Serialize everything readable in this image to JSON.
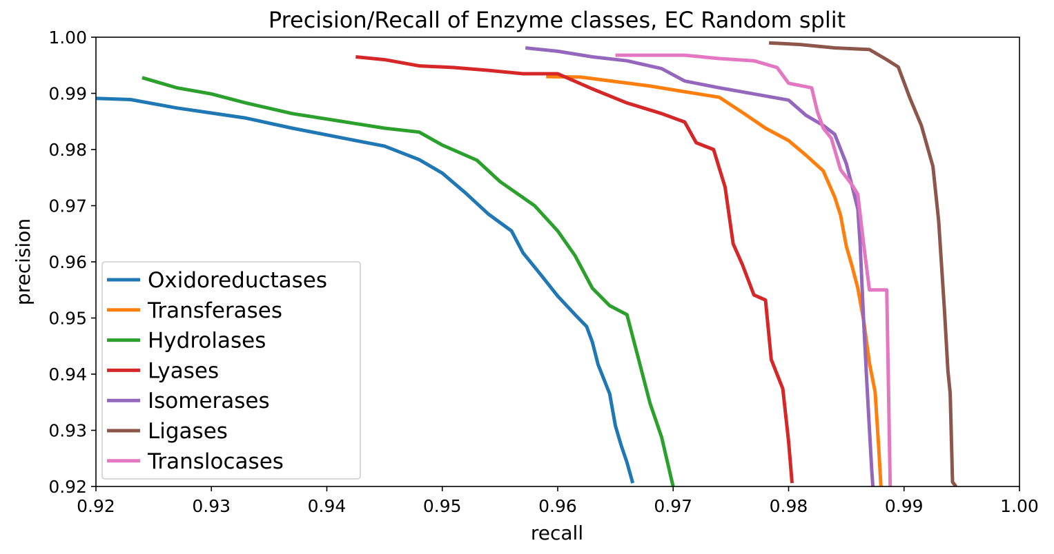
{
  "chart_data": {
    "type": "line",
    "title": "Precision/Recall of Enzyme classes, EC Random split",
    "xlabel": "recall",
    "ylabel": "precision",
    "xlim": [
      0.92,
      1.0
    ],
    "ylim": [
      0.92,
      1.0
    ],
    "xticks": [
      "0.92",
      "0.93",
      "0.94",
      "0.95",
      "0.96",
      "0.97",
      "0.98",
      "0.99",
      "1.00"
    ],
    "yticks": [
      "0.92",
      "0.93",
      "0.94",
      "0.95",
      "0.96",
      "0.97",
      "0.98",
      "0.99",
      "1.00"
    ],
    "grid": false,
    "legend_position": "lower-left",
    "series": [
      {
        "name": "Oxidoreductases",
        "color": "#1f77b4",
        "x": [
          0.92,
          0.923,
          0.927,
          0.93,
          0.933,
          0.937,
          0.941,
          0.945,
          0.948,
          0.95,
          0.952,
          0.954,
          0.956,
          0.957,
          0.9585,
          0.96,
          0.9615,
          0.9625,
          0.963,
          0.9635,
          0.9645,
          0.965,
          0.9655,
          0.966,
          0.9665
        ],
        "y": [
          0.9891,
          0.9889,
          0.9874,
          0.9865,
          0.9856,
          0.9838,
          0.9822,
          0.9806,
          0.9782,
          0.9758,
          0.9723,
          0.9685,
          0.9655,
          0.9616,
          0.9578,
          0.9539,
          0.9506,
          0.9485,
          0.9457,
          0.9417,
          0.9365,
          0.9308,
          0.9273,
          0.9243,
          0.9206
        ]
      },
      {
        "name": "Transferases",
        "color": "#ff7f0e",
        "x": [
          0.959,
          0.962,
          0.965,
          0.968,
          0.971,
          0.974,
          0.976,
          0.978,
          0.98,
          0.9815,
          0.983,
          0.984,
          0.9845,
          0.985,
          0.9855,
          0.986,
          0.9865,
          0.987,
          0.9875,
          0.9878,
          0.988
        ],
        "y": [
          0.993,
          0.9929,
          0.9921,
          0.9913,
          0.9903,
          0.9893,
          0.9866,
          0.9838,
          0.9816,
          0.979,
          0.9762,
          0.9715,
          0.9683,
          0.9628,
          0.9592,
          0.9553,
          0.9496,
          0.942,
          0.9368,
          0.927,
          0.92
        ]
      },
      {
        "name": "Hydrolases",
        "color": "#2ca02c",
        "x": [
          0.924,
          0.927,
          0.93,
          0.933,
          0.937,
          0.941,
          0.945,
          0.948,
          0.95,
          0.953,
          0.955,
          0.958,
          0.96,
          0.9615,
          0.963,
          0.9645,
          0.966,
          0.967,
          0.968,
          0.969,
          0.97
        ],
        "y": [
          0.9928,
          0.991,
          0.9899,
          0.9883,
          0.9864,
          0.9851,
          0.9838,
          0.9831,
          0.9808,
          0.9781,
          0.9743,
          0.97,
          0.9655,
          0.9611,
          0.9553,
          0.9522,
          0.9506,
          0.9427,
          0.9348,
          0.9288,
          0.92
        ]
      },
      {
        "name": "Lyases",
        "color": "#d62728",
        "x": [
          0.9425,
          0.945,
          0.948,
          0.951,
          0.954,
          0.957,
          0.96,
          0.963,
          0.966,
          0.969,
          0.971,
          0.972,
          0.9735,
          0.9745,
          0.9752,
          0.976,
          0.977,
          0.978,
          0.9785,
          0.9795,
          0.98,
          0.9803
        ],
        "y": [
          0.9965,
          0.996,
          0.9949,
          0.9946,
          0.9941,
          0.9935,
          0.9935,
          0.9908,
          0.9883,
          0.9864,
          0.9849,
          0.9812,
          0.98,
          0.9733,
          0.9632,
          0.9595,
          0.9541,
          0.9532,
          0.9426,
          0.9374,
          0.928,
          0.9206
        ]
      },
      {
        "name": "Isomerases",
        "color": "#9467bd",
        "x": [
          0.9572,
          0.96,
          0.963,
          0.966,
          0.969,
          0.971,
          0.974,
          0.977,
          0.98,
          0.9815,
          0.983,
          0.984,
          0.985,
          0.9855,
          0.986,
          0.9862,
          0.9865,
          0.9868,
          0.9872,
          0.9873
        ],
        "y": [
          0.9981,
          0.9975,
          0.9965,
          0.9958,
          0.9944,
          0.9922,
          0.991,
          0.9899,
          0.9888,
          0.9861,
          0.9843,
          0.9827,
          0.9775,
          0.9735,
          0.9694,
          0.963,
          0.9495,
          0.9377,
          0.923,
          0.92
        ]
      },
      {
        "name": "Ligases",
        "color": "#8c564b",
        "x": [
          0.9783,
          0.981,
          0.984,
          0.987,
          0.9885,
          0.9895,
          0.9905,
          0.9915,
          0.9925,
          0.993,
          0.9935,
          0.9938,
          0.994,
          0.9942,
          0.9945
        ],
        "y": [
          0.999,
          0.9987,
          0.9981,
          0.9978,
          0.996,
          0.9947,
          0.9892,
          0.9843,
          0.977,
          0.9673,
          0.9514,
          0.9406,
          0.9366,
          0.9208,
          0.92
        ]
      },
      {
        "name": "Translocases",
        "color": "#e377c2",
        "x": [
          0.965,
          0.968,
          0.971,
          0.974,
          0.977,
          0.979,
          0.98,
          0.982,
          0.9825,
          0.983,
          0.9837,
          0.9845,
          0.9855,
          0.986,
          0.9865,
          0.987,
          0.988,
          0.9885,
          0.9888
        ],
        "y": [
          0.9968,
          0.9968,
          0.9968,
          0.9962,
          0.9958,
          0.9946,
          0.9918,
          0.991,
          0.9867,
          0.9838,
          0.982,
          0.9764,
          0.9737,
          0.972,
          0.9632,
          0.955,
          0.955,
          0.955,
          0.92
        ]
      }
    ]
  }
}
